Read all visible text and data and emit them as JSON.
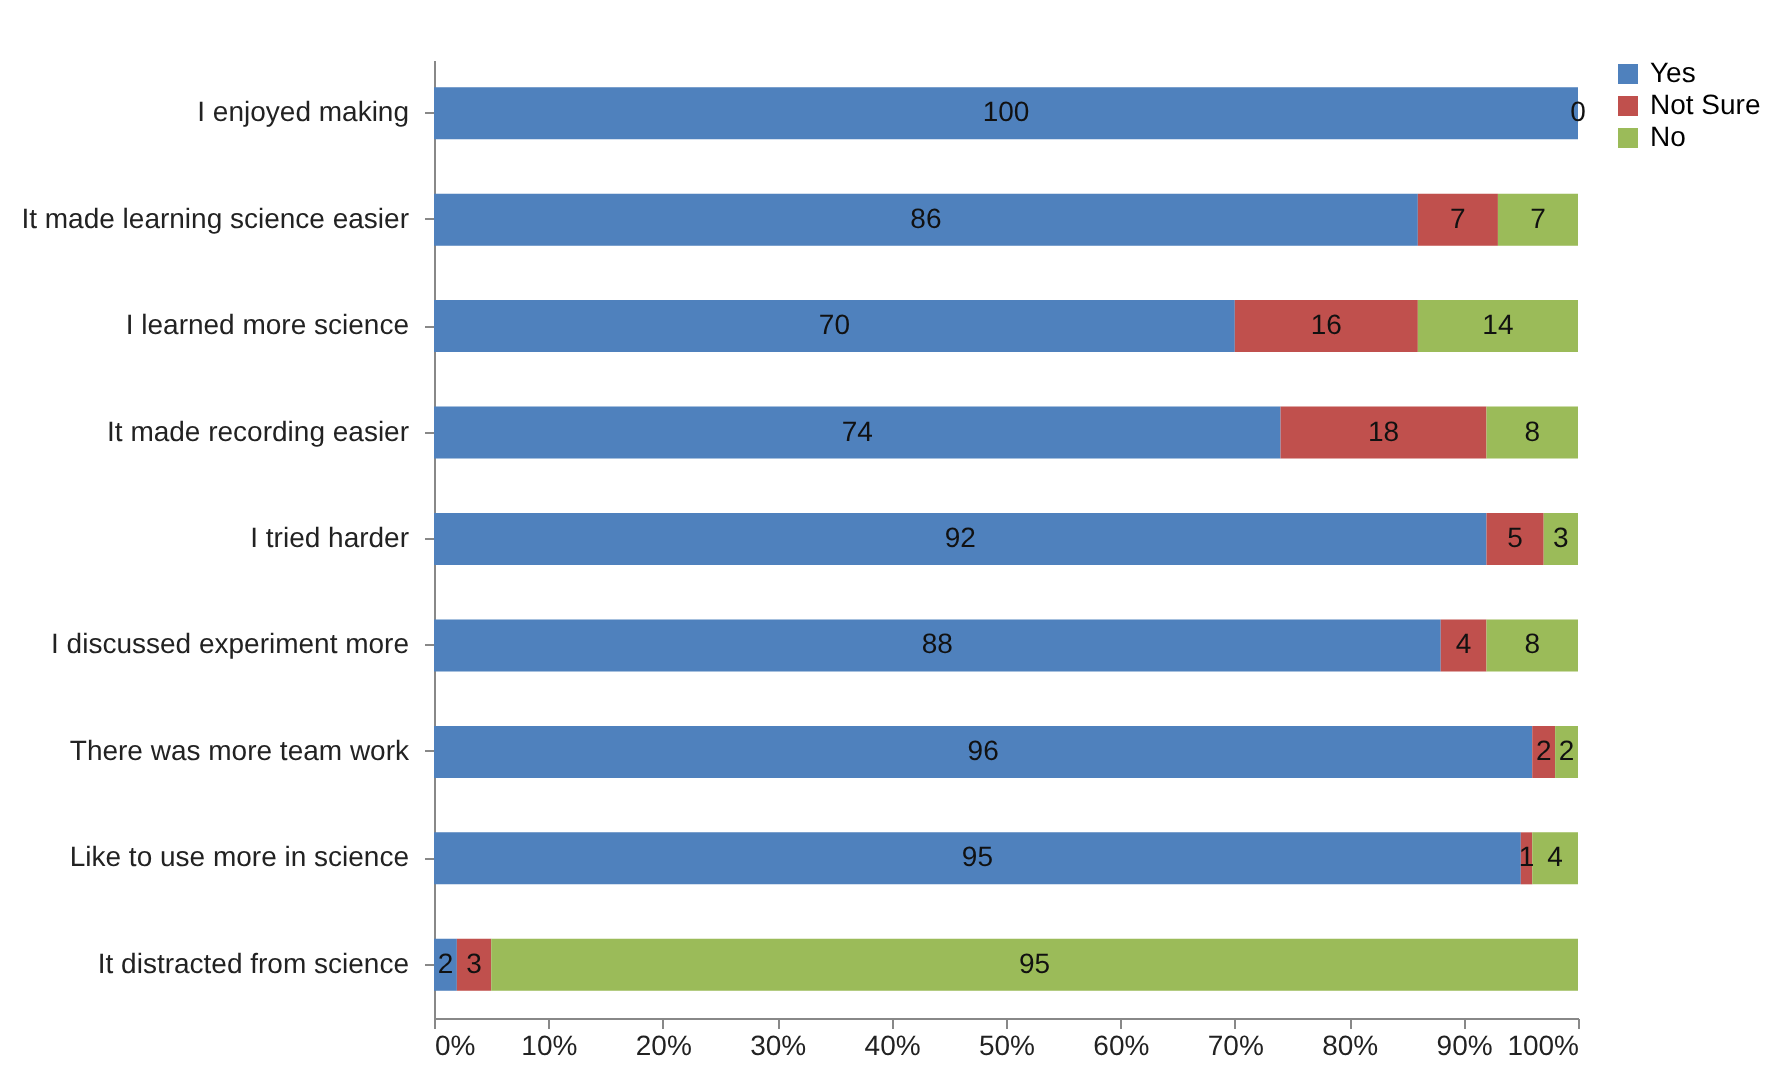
{
  "chart_data": {
    "type": "bar",
    "orientation": "horizontal",
    "stacked": true,
    "categories": [
      "I enjoyed making",
      "It made learning science easier",
      "I learned more science",
      "It made recording easier",
      "I tried harder",
      "I discussed experiment more",
      "There was more team work",
      "Like to use more in science",
      "It distracted from science"
    ],
    "series": [
      {
        "name": "Yes",
        "color": "#4f81bd",
        "values": [
          100,
          86,
          70,
          74,
          92,
          88,
          96,
          95,
          2
        ],
        "value_labels": [
          "100",
          "86",
          "70",
          "74",
          "92",
          "88",
          "96",
          "95",
          "2"
        ]
      },
      {
        "name": "Not Sure",
        "color": "#c0504d",
        "values": [
          0,
          7,
          16,
          18,
          5,
          4,
          2,
          1,
          3
        ],
        "value_labels": [
          null,
          "7",
          "16",
          "18",
          "5",
          "4",
          "2",
          "1",
          "3"
        ]
      },
      {
        "name": "No",
        "color": "#9bbb59",
        "values": [
          0,
          7,
          14,
          8,
          3,
          8,
          2,
          4,
          95
        ],
        "value_labels": [
          "0",
          "7",
          "14",
          "8",
          "3",
          "8",
          "2",
          "4",
          "95"
        ]
      }
    ],
    "xlim": [
      0,
      100
    ],
    "xticks": [
      {
        "value": 0,
        "label": "0%"
      },
      {
        "value": 10,
        "label": "10%"
      },
      {
        "value": 20,
        "label": "20%"
      },
      {
        "value": 30,
        "label": "30%"
      },
      {
        "value": 40,
        "label": "40%"
      },
      {
        "value": 50,
        "label": "50%"
      },
      {
        "value": 60,
        "label": "60%"
      },
      {
        "value": 70,
        "label": "70%"
      },
      {
        "value": 80,
        "label": "80%"
      },
      {
        "value": 90,
        "label": "90%"
      },
      {
        "value": 100,
        "label": "100%"
      }
    ],
    "grid": false,
    "legend": "right"
  }
}
